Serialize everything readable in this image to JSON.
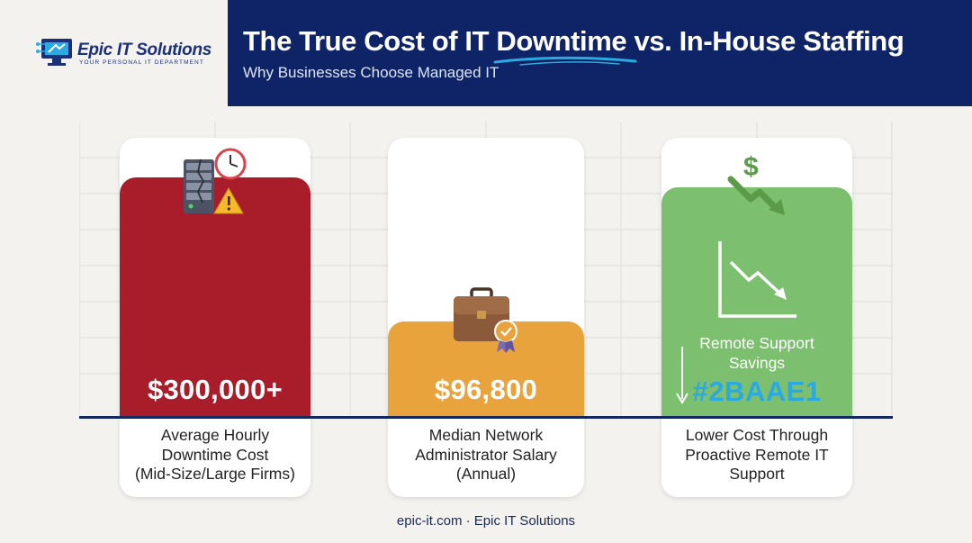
{
  "brand": {
    "name": "Epic IT Solutions",
    "tagline": "YOUR PERSONAL IT DEPARTMENT",
    "icon": "monitor-circuit-logo",
    "color": "#1c2f7a"
  },
  "header": {
    "title": "The True Cost of IT Downtime vs. In-House Staffing",
    "subtitle": "Why Businesses Choose Managed IT",
    "band_color": "#0f2466"
  },
  "cards": [
    {
      "value_label": "$300,000+",
      "description": "Average Hourly\nDowntime Cost\n(Mid-Size/Large Firms)",
      "color": "#a91d2a",
      "icon": "broken-server-clock-warning-icon"
    },
    {
      "value_label": "$96,800",
      "description": "Median Network\nAdministrator Salary\n(Annual)",
      "color": "#e8a33d",
      "icon": "briefcase-award-icon"
    },
    {
      "savings_label": "Remote Support\nSavings",
      "savings_value": "#2BAAE1",
      "description": "Lower Cost Through\nProactive Remote IT\nSupport",
      "color": "#7cbf6e",
      "savings_value_color": "#2baae1",
      "icon": "dollar-down-arrow-icon",
      "chart_icon": "declining-chart-icon"
    }
  ],
  "chart_data": {
    "type": "bar",
    "categories": [
      "Average Hourly Downtime Cost (Mid-Size/Large Firms)",
      "Median Network Administrator Salary (Annual)",
      "Lower Cost Through Proactive Remote IT Support"
    ],
    "values": [
      300000,
      96800,
      null
    ],
    "value_labels": [
      "$300,000+",
      "$96,800",
      "#2BAAE1"
    ],
    "relative_heights": [
      1.0,
      0.4,
      0.96
    ],
    "colors": [
      "#a91d2a",
      "#e8a33d",
      "#7cbf6e"
    ],
    "title": "The True Cost of IT Downtime vs. In-House Staffing",
    "subtitle": "Why Businesses Choose Managed IT",
    "xlabel": "",
    "ylabel": "",
    "grid": true
  },
  "footer": {
    "text": "epic-it.com · Epic IT Solutions"
  }
}
